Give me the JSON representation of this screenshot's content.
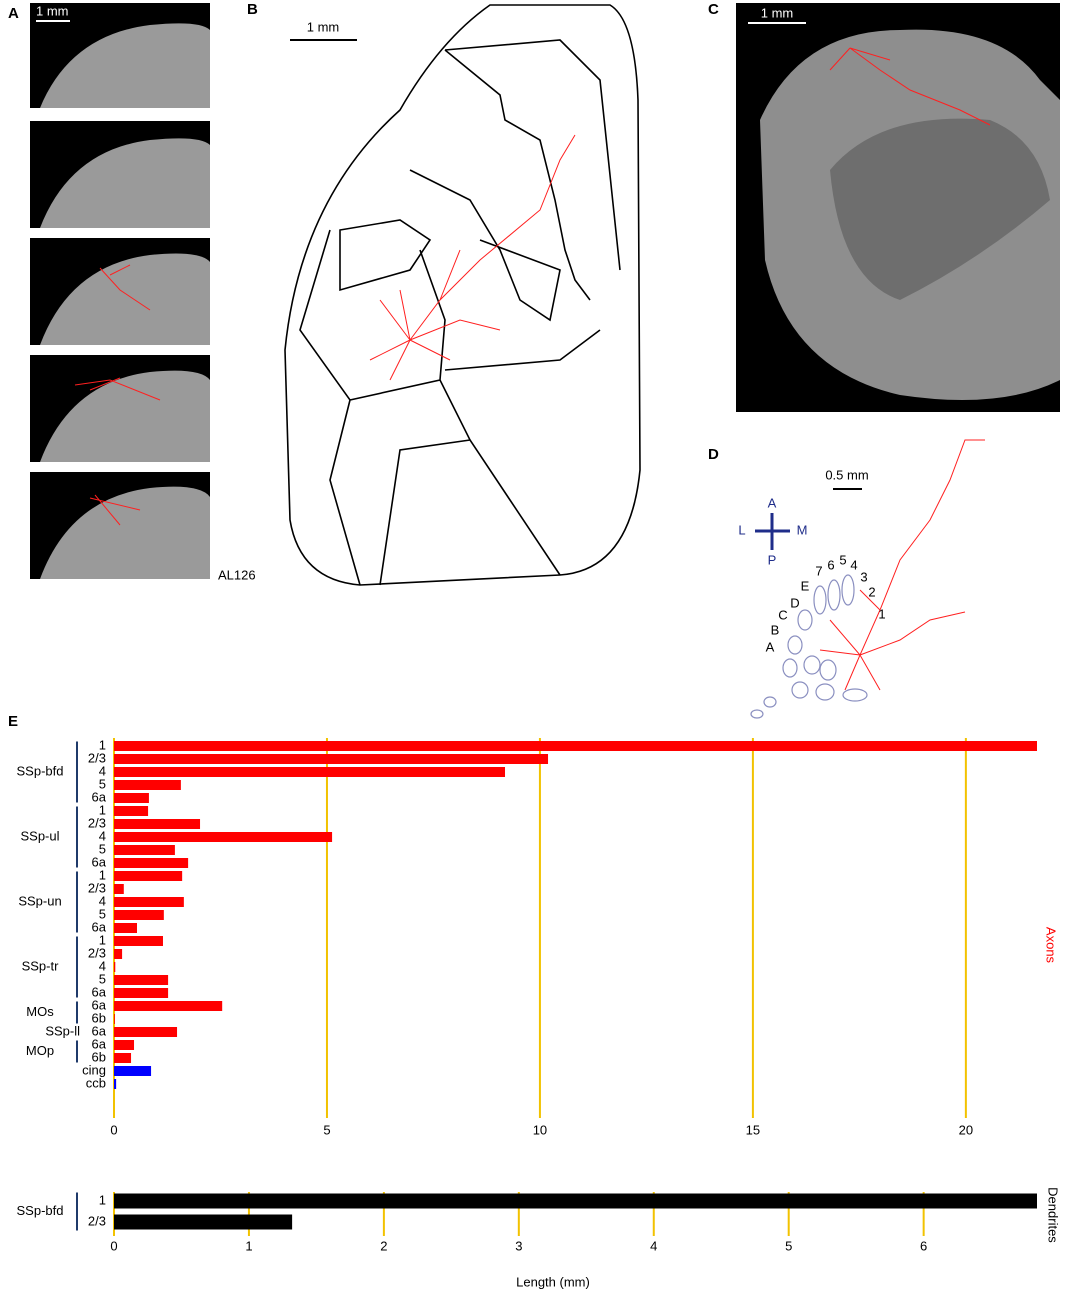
{
  "panels": {
    "A": {
      "label": "A",
      "scale": "1 mm",
      "id": "AL126"
    },
    "B": {
      "label": "B",
      "scale": "1 mm"
    },
    "C": {
      "label": "C",
      "scale": "1 mm"
    },
    "D": {
      "label": "D",
      "scale": "0.5 mm",
      "compass": [
        "A",
        "L",
        "M",
        "P"
      ],
      "barrels": [
        "7",
        "6",
        "5",
        "4",
        "3",
        "2",
        "1",
        "E",
        "D",
        "C",
        "B",
        "A"
      ]
    },
    "E": {
      "label": "E"
    }
  },
  "chart_data": [
    {
      "type": "bar",
      "orientation": "horizontal",
      "series_label": "Axons",
      "series_label_color": "#ff0000",
      "groups": [
        {
          "name": "SSp-bfd",
          "color": "#ff0000",
          "categories": [
            "1",
            "2/3",
            "4",
            "5",
            "6a"
          ],
          "values": [
            21.67,
            10.19,
            9.18,
            1.57,
            0.82
          ]
        },
        {
          "name": "SSp-ul",
          "color": "#ff0000",
          "categories": [
            "1",
            "2/3",
            "4",
            "5",
            "6a"
          ],
          "values": [
            0.8,
            2.02,
            5.12,
            1.43,
            1.74
          ]
        },
        {
          "name": "SSp-un",
          "color": "#ff0000",
          "categories": [
            "1",
            "2/3",
            "4",
            "5",
            "6a"
          ],
          "values": [
            1.6,
            0.23,
            1.64,
            1.17,
            0.54
          ]
        },
        {
          "name": "SSp-tr",
          "color": "#ff0000",
          "categories": [
            "1",
            "2/3",
            "4",
            "5",
            "6a"
          ],
          "values": [
            1.15,
            0.19,
            0.03,
            1.27,
            1.27
          ]
        },
        {
          "name": "MOs",
          "color": "#ff0000",
          "categories": [
            "6a",
            "6b"
          ],
          "values": [
            2.54,
            0.02
          ]
        },
        {
          "name": "SSp-ll",
          "color": "#ff0000",
          "categories": [
            "6a"
          ],
          "values": [
            1.48
          ]
        },
        {
          "name": "MOp",
          "color": "#ff0000",
          "categories": [
            "6a",
            "6b"
          ],
          "values": [
            0.47,
            0.4
          ]
        },
        {
          "color": "#0000ff",
          "categories": [
            "cing",
            "ccb"
          ],
          "values": [
            0.87,
            0.05
          ]
        }
      ],
      "xlim": [
        0,
        21.67
      ],
      "xticks": [
        0,
        5,
        10,
        15,
        20
      ],
      "grid": true,
      "grid_color": "#f2c200"
    },
    {
      "type": "bar",
      "orientation": "horizontal",
      "series_label": "Dendrites",
      "series_label_color": "#000000",
      "groups": [
        {
          "name": "SSp-bfd",
          "color": "#000000",
          "categories": [
            "1",
            "2/3"
          ],
          "values": [
            6.84,
            1.32
          ]
        }
      ],
      "xlim": [
        0,
        6.84
      ],
      "xticks": [
        0,
        1,
        2,
        3,
        4,
        5,
        6
      ],
      "grid": true,
      "grid_color": "#f2c200",
      "xlabel": "Length (mm)"
    }
  ]
}
